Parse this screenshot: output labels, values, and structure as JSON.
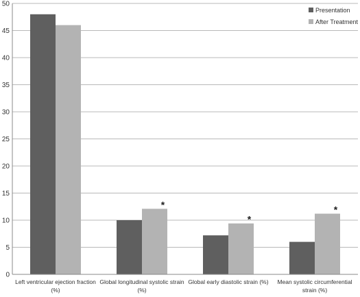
{
  "chart_data": {
    "type": "bar",
    "categories": [
      [
        "Left ventricular ejection fraction",
        "(%)"
      ],
      [
        "Global longitudinal systolic strain",
        "(%)"
      ],
      [
        "Global early diastolic strain (%)"
      ],
      [
        "Mean systolic circumferential",
        "strain (%)"
      ]
    ],
    "series": [
      {
        "name": "Presentation",
        "color": "#5f5f5f",
        "values": [
          48,
          10,
          7.2,
          6
        ]
      },
      {
        "name": "After Treatment",
        "color": "#b3b3b3",
        "values": [
          46,
          12.1,
          9.4,
          11.2
        ]
      }
    ],
    "significance": [
      {
        "category_index": 1,
        "series_index": 1,
        "label": "*"
      },
      {
        "category_index": 2,
        "series_index": 1,
        "label": "*"
      },
      {
        "category_index": 3,
        "series_index": 1,
        "label": "*"
      }
    ],
    "ylim": [
      0,
      50
    ],
    "yticks": [
      0,
      5,
      10,
      15,
      20,
      25,
      30,
      35,
      40,
      45,
      50
    ],
    "grid": true,
    "legend_position": "top-right"
  }
}
